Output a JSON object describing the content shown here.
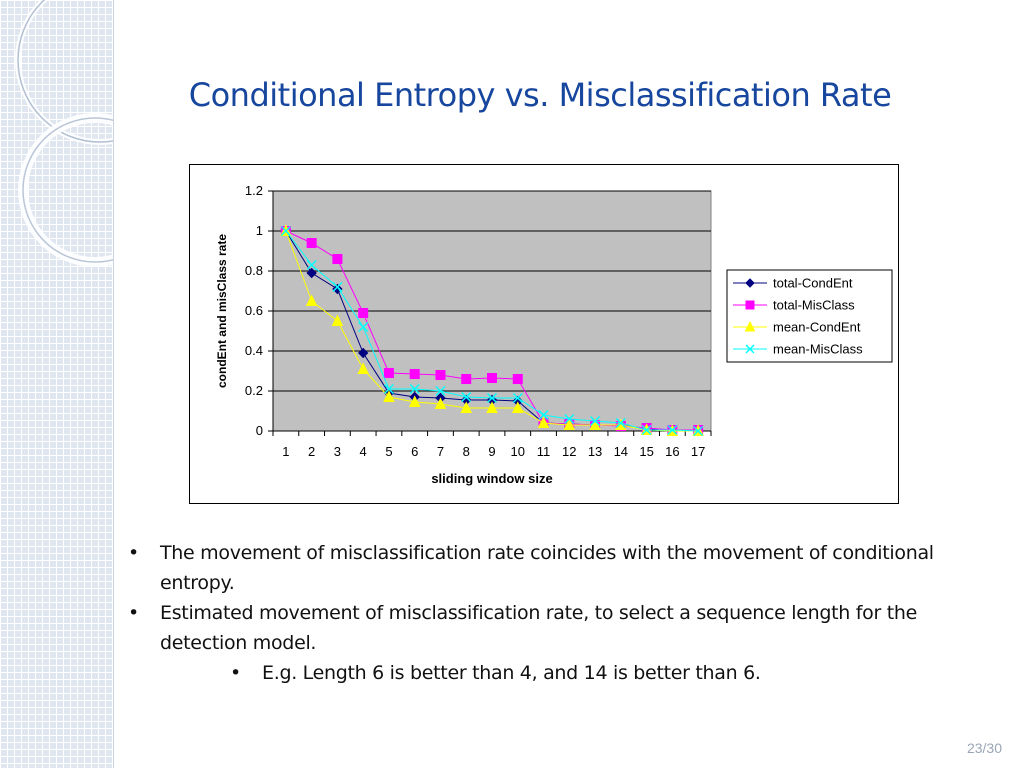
{
  "slide": {
    "title": "Conditional Entropy vs. Misclassification Rate",
    "page_number": "23/30"
  },
  "bullets": [
    {
      "text": "The movement of misclassification rate coincides with the movement of conditional entropy.",
      "level": 1
    },
    {
      "text": "Estimated movement of misclassification rate, to select a sequence length for the detection model.",
      "level": 1
    },
    {
      "text": "E.g. Length 6 is better than 4, and 14 is better than 6.",
      "level": 2
    }
  ],
  "chart_data": {
    "type": "line",
    "title": "",
    "xlabel": "sliding window size",
    "ylabel": "condEnt and misClass rate",
    "categories": [
      "1",
      "2",
      "3",
      "4",
      "5",
      "6",
      "7",
      "8",
      "9",
      "10",
      "11",
      "12",
      "13",
      "14",
      "15",
      "16",
      "17"
    ],
    "ylim": [
      0,
      1.2
    ],
    "yticks": [
      "0",
      "0.2",
      "0.4",
      "0.6",
      "0.8",
      "1",
      "1.2"
    ],
    "grid": true,
    "legend_position": "right",
    "plot_background": "#c0c0c0",
    "series": [
      {
        "name": "total-CondEnt",
        "color": "#000080",
        "marker": "diamond",
        "values": [
          1.0,
          0.79,
          0.71,
          0.39,
          0.19,
          0.17,
          0.165,
          0.155,
          0.155,
          0.15,
          0.04,
          0.035,
          0.03,
          0.03,
          0.01,
          0.005,
          0.0
        ]
      },
      {
        "name": "total-MisClass",
        "color": "#ff00ff",
        "marker": "square",
        "values": [
          1.0,
          0.94,
          0.86,
          0.59,
          0.29,
          0.285,
          0.28,
          0.26,
          0.265,
          0.26,
          0.04,
          0.035,
          0.03,
          0.025,
          0.015,
          0.005,
          0.005
        ]
      },
      {
        "name": "mean-CondEnt",
        "color": "#ffff00",
        "marker": "triangle",
        "values": [
          1.0,
          0.65,
          0.55,
          0.31,
          0.17,
          0.145,
          0.135,
          0.115,
          0.115,
          0.115,
          0.04,
          0.03,
          0.03,
          0.03,
          0.005,
          0.0,
          0.0
        ]
      },
      {
        "name": "mean-MisClass",
        "color": "#00ffff",
        "marker": "x",
        "values": [
          1.0,
          0.83,
          0.72,
          0.52,
          0.21,
          0.21,
          0.2,
          0.17,
          0.165,
          0.165,
          0.08,
          0.06,
          0.05,
          0.04,
          0.005,
          0.005,
          0.0
        ]
      }
    ]
  }
}
